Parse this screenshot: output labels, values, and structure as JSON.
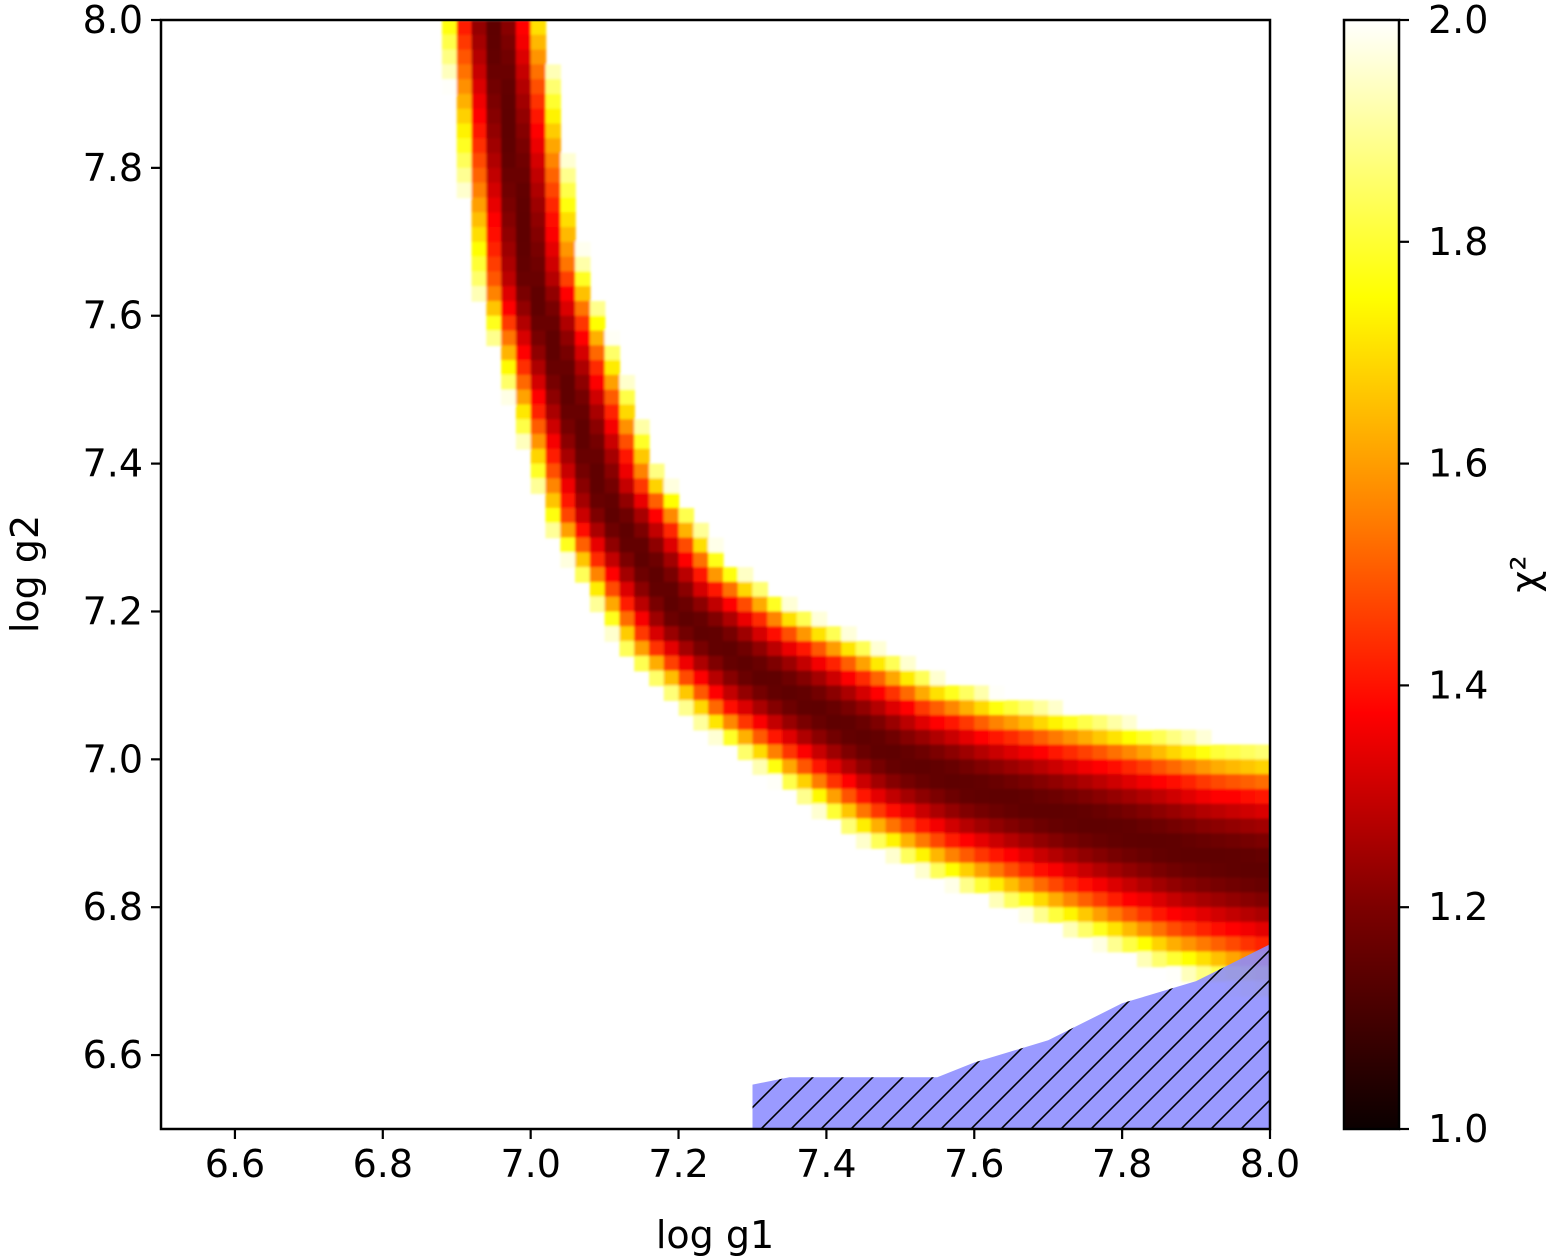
{
  "chart_data": {
    "type": "heatmap",
    "xlabel": "log g1",
    "ylabel": "log g2",
    "xlim": [
      6.5,
      8.0
    ],
    "ylim": [
      6.5,
      8.0
    ],
    "x_ticks": [
      "6.6",
      "6.8",
      "7.0",
      "7.2",
      "7.4",
      "7.6",
      "7.8",
      "8.0"
    ],
    "y_ticks": [
      "6.6",
      "6.8",
      "7.0",
      "7.2",
      "7.4",
      "7.6",
      "7.8",
      "8.0"
    ],
    "colorbar": {
      "label": "χ²",
      "colormap": "hot",
      "range": [
        1.0,
        2.0
      ],
      "ticks": [
        "1.0",
        "1.2",
        "1.4",
        "1.6",
        "1.8",
        "2.0"
      ]
    },
    "values_above_max_shown_as": "white",
    "valley": {
      "description_of_shape": "hyperbolic low-chi2 valley",
      "chi2_min": 1.12,
      "center_curve": [
        [
          6.95,
          8.0
        ],
        [
          7.0,
          7.65
        ],
        [
          7.1,
          7.35
        ],
        [
          7.2,
          7.2
        ],
        [
          7.3,
          7.12
        ],
        [
          7.4,
          7.06
        ],
        [
          7.5,
          7.0
        ],
        [
          7.6,
          6.96
        ],
        [
          7.7,
          6.93
        ],
        [
          7.8,
          6.9
        ],
        [
          7.9,
          6.87
        ],
        [
          8.0,
          6.85
        ]
      ]
    },
    "excluded_region": {
      "fill_color": "#8c8cff",
      "hatch": "diagonal",
      "boundary": [
        [
          7.3,
          6.5
        ],
        [
          7.3,
          6.56
        ],
        [
          7.35,
          6.57
        ],
        [
          7.55,
          6.57
        ],
        [
          7.6,
          6.59
        ],
        [
          7.7,
          6.62
        ],
        [
          7.8,
          6.67
        ],
        [
          7.9,
          6.7
        ],
        [
          8.0,
          6.75
        ],
        [
          8.0,
          6.5
        ]
      ]
    }
  }
}
